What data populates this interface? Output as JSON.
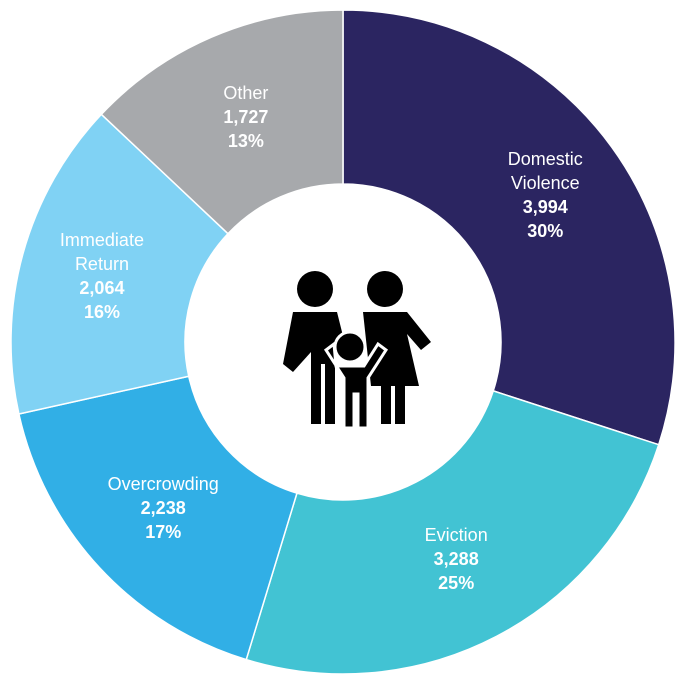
{
  "chart_data": {
    "type": "donut",
    "categories": [
      "Domestic Violence",
      "Eviction",
      "Overcrowding",
      "Immediate Return",
      "Other"
    ],
    "values": [
      3994,
      3288,
      2238,
      2064,
      1727
    ],
    "value_labels": [
      "3,994",
      "3,288",
      "2,238",
      "2,064",
      "1,727"
    ],
    "percent_labels": [
      "30%",
      "25%",
      "17%",
      "16%",
      "13%"
    ],
    "colors": [
      "#2b2561",
      "#42c3d3",
      "#31afe6",
      "#80d2f4",
      "#a7a9ac"
    ]
  }
}
